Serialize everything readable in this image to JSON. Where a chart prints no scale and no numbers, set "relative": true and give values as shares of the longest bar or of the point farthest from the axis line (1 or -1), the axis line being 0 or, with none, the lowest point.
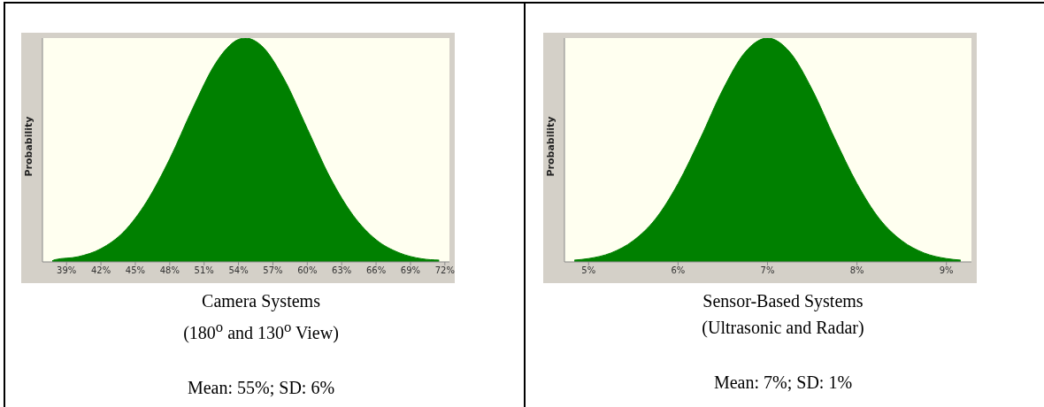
{
  "chart_data": [
    {
      "type": "area",
      "relative": true,
      "ylabel": "Probability",
      "color": "#008000",
      "x": [
        37.75,
        38,
        40,
        42,
        44,
        46,
        48,
        50,
        52,
        53,
        54,
        54.6,
        56,
        58,
        60,
        62,
        64,
        66,
        68,
        70,
        71.5
      ],
      "values": [
        0.005,
        0.01,
        0.023,
        0.059,
        0.135,
        0.27,
        0.46,
        0.685,
        0.887,
        0.955,
        0.994,
        1,
        0.966,
        0.814,
        0.595,
        0.376,
        0.208,
        0.099,
        0.041,
        0.014,
        0.008
      ],
      "xlim": [
        36.9,
        72.4
      ],
      "xticks": [
        {
          "value": 39,
          "label": "39%"
        },
        {
          "value": 42,
          "label": "42%"
        },
        {
          "value": 45,
          "label": "45%"
        },
        {
          "value": 48,
          "label": "48%"
        },
        {
          "value": 51,
          "label": "51%"
        },
        {
          "value": 54,
          "label": "54%"
        },
        {
          "value": 57,
          "label": "57%"
        },
        {
          "value": 60,
          "label": "60%"
        },
        {
          "value": 63,
          "label": "63%"
        },
        {
          "value": 66,
          "label": "66%"
        },
        {
          "value": 69,
          "label": "69%"
        },
        {
          "value": 72,
          "label": "72%"
        }
      ],
      "annotations": [
        "Camera Systems",
        "(180$^{o}$ and 130$^{o}$ View)",
        "Mean: 55%;  SD: 6%"
      ]
    },
    {
      "type": "area",
      "relative": true,
      "ylabel": "Probability",
      "color": "#008000",
      "x": [
        4.84,
        5,
        5.25,
        5.5,
        5.75,
        6,
        6.25,
        6.5,
        6.75,
        7,
        7.25,
        7.5,
        7.75,
        8,
        8.25,
        8.5,
        8.75,
        9,
        9.16
      ],
      "values": [
        0.008,
        0.015,
        0.04,
        0.095,
        0.193,
        0.35,
        0.552,
        0.769,
        0.937,
        1,
        0.937,
        0.769,
        0.552,
        0.35,
        0.193,
        0.095,
        0.04,
        0.015,
        0.008
      ],
      "xlim": [
        4.73,
        9.28
      ],
      "xticks": [
        {
          "value": 5,
          "label": "5%"
        },
        {
          "value": 6,
          "label": "6%"
        },
        {
          "value": 7,
          "label": "7%"
        },
        {
          "value": 8,
          "label": "8%"
        },
        {
          "value": 9,
          "label": "9%"
        }
      ],
      "annotations": [
        "Sensor-Based Systems",
        "(Ultrasonic and Radar)",
        "Mean: 7%; SD: 1%"
      ]
    }
  ]
}
